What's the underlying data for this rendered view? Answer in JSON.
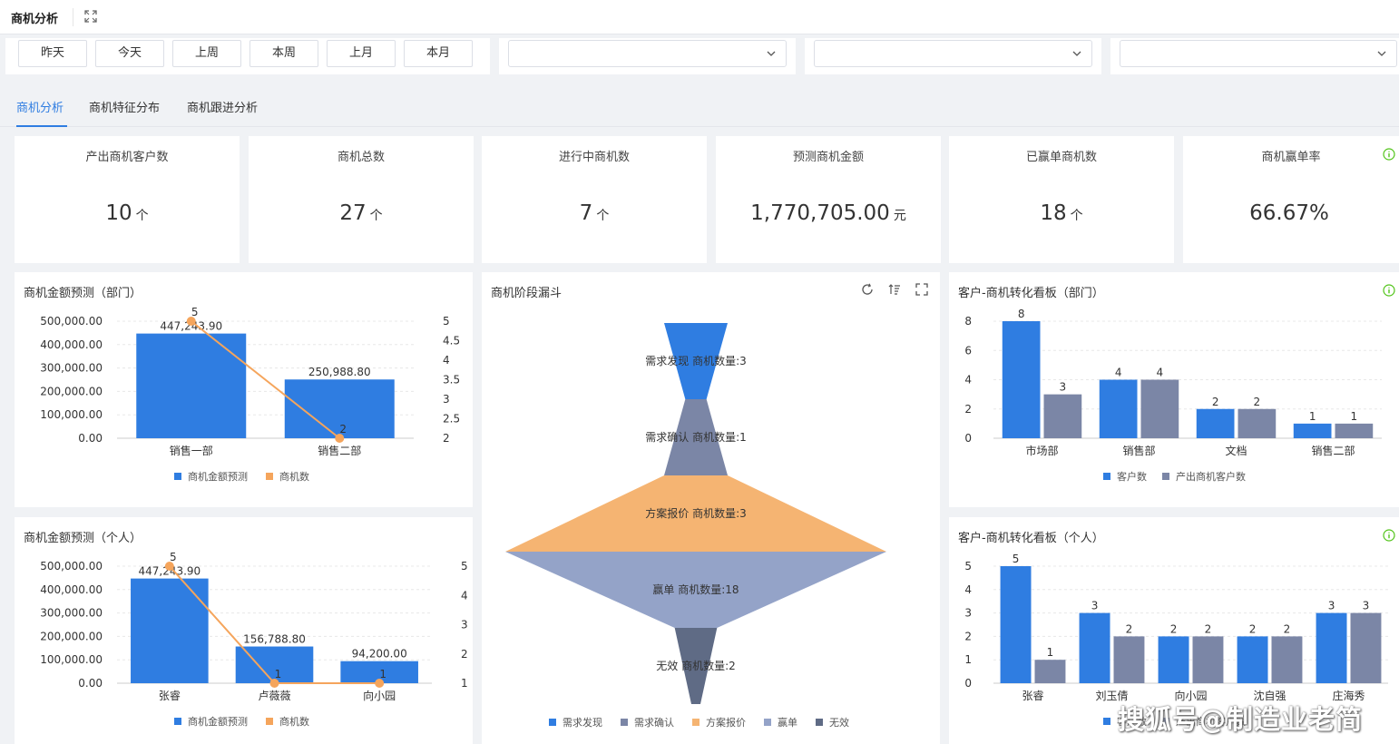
{
  "header": {
    "title": "商机分析"
  },
  "filters": {
    "quick_buttons": [
      "昨天",
      "今天",
      "上周",
      "本周",
      "上月",
      "本月"
    ],
    "selects": [
      "",
      "",
      ""
    ]
  },
  "tabs": [
    {
      "label": "商机分析",
      "active": true
    },
    {
      "label": "商机特征分布",
      "active": false
    },
    {
      "label": "商机跟进分析",
      "active": false
    }
  ],
  "kpis": [
    {
      "label": "产出商机客户数",
      "value": "10",
      "unit": "个"
    },
    {
      "label": "商机总数",
      "value": "27",
      "unit": "个"
    },
    {
      "label": "进行中商机数",
      "value": "7",
      "unit": "个"
    },
    {
      "label": "预测商机金额",
      "value": "1,770,705.00",
      "unit": "元"
    },
    {
      "label": "已赢单商机数",
      "value": "18",
      "unit": "个"
    },
    {
      "label": "商机赢单率",
      "value": "66.67%",
      "unit": ""
    }
  ],
  "colors": {
    "accent": "#2f7de1",
    "bar_blue": "#2f7de1",
    "line_orange": "#f5a55c",
    "bar_gray": "#7b86a6",
    "info_green": "#52c41a"
  },
  "chart_data": [
    {
      "type": "bar",
      "title": "商机金额预测（部门）",
      "categories": [
        "销售一部",
        "销售二部"
      ],
      "series": [
        {
          "name": "商机金额预测",
          "kind": "bar",
          "values": [
            447243.9,
            250988.8
          ],
          "labels": [
            "447,243.90",
            "250,988.80"
          ]
        },
        {
          "name": "商机数",
          "kind": "line",
          "values": [
            5,
            2
          ],
          "labels": [
            "5",
            "2"
          ]
        }
      ],
      "ylim": [
        0,
        500000
      ],
      "yticks": [
        "500,000.00",
        "400,000.00",
        "300,000.00",
        "200,000.00",
        "100,000.00",
        "0.00"
      ],
      "y2lim": [
        2,
        5
      ],
      "y2ticks": [
        "5",
        "4.5",
        "4",
        "3.5",
        "3",
        "2.5",
        "2"
      ],
      "grid": true,
      "legend": "bottom"
    },
    {
      "type": "bar",
      "title": "商机金额预测（个人）",
      "categories": [
        "张睿",
        "卢薇薇",
        "向小园"
      ],
      "series": [
        {
          "name": "商机金额预测",
          "kind": "bar",
          "values": [
            447243.9,
            156788.8,
            94200.0
          ],
          "labels": [
            "447,243.90",
            "156,788.80",
            "94,200.00"
          ]
        },
        {
          "name": "商机数",
          "kind": "line",
          "values": [
            5,
            1,
            1
          ],
          "labels": [
            "5",
            "1",
            "1"
          ]
        }
      ],
      "ylim": [
        0,
        500000
      ],
      "yticks": [
        "500,000.00",
        "400,000.00",
        "300,000.00",
        "200,000.00",
        "100,000.00",
        "0.00"
      ],
      "y2lim": [
        1,
        5
      ],
      "y2ticks": [
        "5",
        "4",
        "3",
        "2",
        "1"
      ],
      "grid": true,
      "legend": "bottom"
    },
    {
      "type": "funnel",
      "title": "商机阶段漏斗",
      "stages": [
        {
          "name": "需求发现",
          "label": "需求发现 商机数量:3",
          "value": 3,
          "color": "#2f7de1"
        },
        {
          "name": "需求确认",
          "label": "需求确认 商机数量:1",
          "value": 1,
          "color": "#7b86a6"
        },
        {
          "name": "方案报价",
          "label": "方案报价 商机数量:3",
          "value": 3,
          "color": "#f5b472"
        },
        {
          "name": "赢单",
          "label": "赢单 商机数量:18",
          "value": 18,
          "color": "#94a3c8"
        },
        {
          "name": "无效",
          "label": "无效 商机数量:2",
          "value": 2,
          "color": "#5f6b85"
        }
      ],
      "legend": "bottom"
    },
    {
      "type": "bar",
      "title": "客户-商机转化看板（部门）",
      "categories": [
        "市场部",
        "销售部",
        "文档",
        "销售二部"
      ],
      "series": [
        {
          "name": "客户数",
          "values": [
            8,
            4,
            2,
            1
          ]
        },
        {
          "name": "产出商机客户数",
          "values": [
            3,
            4,
            2,
            1
          ]
        }
      ],
      "ylim": [
        0,
        8
      ],
      "yticks": [
        "8",
        "6",
        "4",
        "2",
        "0"
      ],
      "grid": true,
      "legend": "bottom"
    },
    {
      "type": "bar",
      "title": "客户-商机转化看板（个人）",
      "categories": [
        "张睿",
        "刘玉倩",
        "向小园",
        "沈自强",
        "庄海秀"
      ],
      "series": [
        {
          "name": "客户数",
          "values": [
            5,
            3,
            2,
            2,
            3
          ]
        },
        {
          "name": "产出商机客户数",
          "values": [
            1,
            2,
            2,
            2,
            3
          ]
        }
      ],
      "ylim": [
        0,
        5
      ],
      "yticks": [
        "5",
        "4",
        "3",
        "2",
        "1",
        "0"
      ],
      "grid": true,
      "legend": "bottom"
    }
  ],
  "watermark": "搜狐号@制造业老简"
}
